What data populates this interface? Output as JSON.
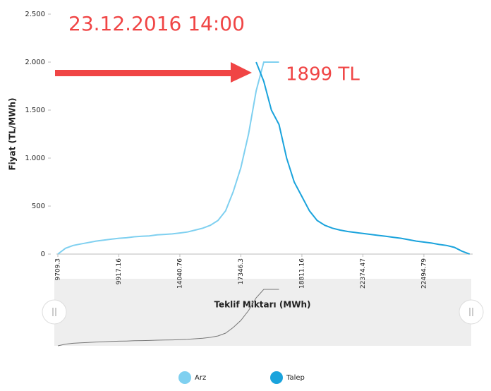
{
  "chart_data": {
    "type": "line",
    "title": "23.12.2016 14:00",
    "annotation": "1899 TL",
    "ylabel": "Fiyat (TL/MWh)",
    "xlabel": "Teklif Miktarı (MWh)",
    "categories": [
      "9709.3",
      null,
      null,
      null,
      null,
      null,
      null,
      null,
      "9917.16",
      null,
      null,
      null,
      null,
      null,
      null,
      null,
      "14040.76",
      null,
      null,
      null,
      null,
      null,
      null,
      null,
      "17346.3",
      null,
      null,
      null,
      null,
      null,
      null,
      null,
      "18811.16",
      null,
      null,
      null,
      null,
      null,
      null,
      null,
      "22374.47",
      null,
      null,
      null,
      null,
      null,
      null,
      null,
      "22494.79",
      null,
      null,
      null,
      null,
      null,
      null
    ],
    "series": [
      {
        "name": "Arz",
        "color": "#7fd0f0",
        "values": [
          0,
          60,
          90,
          105,
          120,
          135,
          145,
          155,
          165,
          170,
          180,
          185,
          190,
          200,
          205,
          210,
          220,
          230,
          250,
          270,
          300,
          350,
          450,
          650,
          900,
          1250,
          1700,
          2000,
          2000,
          2000,
          null,
          null,
          null,
          null,
          null,
          null,
          null,
          null,
          null,
          null,
          null,
          null,
          null,
          null,
          null,
          null,
          null,
          null,
          null,
          null,
          null,
          null,
          null,
          null,
          null
        ]
      },
      {
        "name": "Talep",
        "color": "#1aa3dc",
        "values": [
          null,
          null,
          null,
          null,
          null,
          null,
          null,
          null,
          null,
          null,
          null,
          null,
          null,
          null,
          null,
          null,
          null,
          null,
          null,
          null,
          null,
          null,
          null,
          null,
          null,
          null,
          2000,
          1800,
          1500,
          1350,
          1000,
          750,
          600,
          450,
          350,
          300,
          270,
          250,
          235,
          225,
          215,
          205,
          195,
          185,
          175,
          165,
          150,
          135,
          125,
          115,
          100,
          90,
          70,
          30,
          0
        ]
      }
    ],
    "ylim": [
      0,
      2500
    ],
    "yticks": [
      {
        "value": 0,
        "label": "0"
      },
      {
        "value": 500,
        "label": "500"
      },
      {
        "value": 1000,
        "label": "1.000"
      },
      {
        "value": 1500,
        "label": "1.500"
      },
      {
        "value": 2000,
        "label": "2.000"
      },
      {
        "value": 2500,
        "label": "2.500"
      }
    ],
    "grid": false
  }
}
